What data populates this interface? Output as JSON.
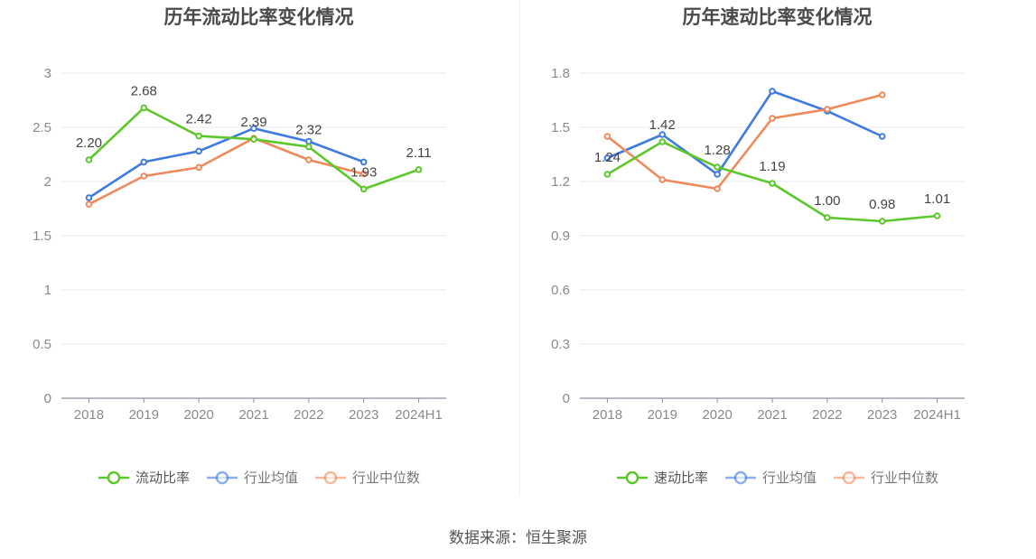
{
  "source_text": "数据来源：恒生聚源",
  "chart_data": [
    {
      "type": "line",
      "title": "历年流动比率变化情况",
      "categories": [
        "2018",
        "2019",
        "2020",
        "2021",
        "2022",
        "2023",
        "2024H1"
      ],
      "ylim": [
        0,
        3
      ],
      "yticks": [
        "0",
        "0.5",
        "1",
        "1.5",
        "2",
        "2.5",
        "3"
      ],
      "ytick_values": [
        0,
        0.5,
        1,
        1.5,
        2,
        2.5,
        3
      ],
      "grid": true,
      "legend_position": "bottom",
      "labeled_series": 0,
      "series": [
        {
          "name": "流动比率",
          "color": "#5cc72a",
          "values": [
            2.2,
            2.68,
            2.42,
            2.39,
            2.32,
            1.93,
            2.11
          ],
          "labels": [
            "2.20",
            "2.68",
            "2.42",
            "2.39",
            "2.32",
            "1.93",
            "2.11"
          ]
        },
        {
          "name": "行业均值",
          "color": "#3f7ae0",
          "values": [
            1.85,
            2.18,
            2.28,
            2.49,
            2.37,
            2.18,
            null
          ]
        },
        {
          "name": "行业中位数",
          "color": "#f0895a",
          "values": [
            1.79,
            2.05,
            2.13,
            2.4,
            2.2,
            2.07,
            null
          ]
        }
      ]
    },
    {
      "type": "line",
      "title": "历年速动比率变化情况",
      "categories": [
        "2018",
        "2019",
        "2020",
        "2021",
        "2022",
        "2023",
        "2024H1"
      ],
      "ylim": [
        0,
        1.8
      ],
      "yticks": [
        "0",
        "0.3",
        "0.6",
        "0.9",
        "1.2",
        "1.5",
        "1.8"
      ],
      "ytick_values": [
        0,
        0.3,
        0.6,
        0.9,
        1.2,
        1.5,
        1.8
      ],
      "grid": true,
      "legend_position": "bottom",
      "labeled_series": 0,
      "series": [
        {
          "name": "速动比率",
          "color": "#5cc72a",
          "values": [
            1.24,
            1.42,
            1.28,
            1.19,
            1.0,
            0.98,
            1.01
          ],
          "labels": [
            "1.24",
            "1.42",
            "1.28",
            "1.19",
            "1.00",
            "0.98",
            "1.01"
          ]
        },
        {
          "name": "行业均值",
          "color": "#3f7ae0",
          "values": [
            1.33,
            1.46,
            1.24,
            1.7,
            1.59,
            1.45,
            null
          ]
        },
        {
          "name": "行业中位数",
          "color": "#f0895a",
          "values": [
            1.45,
            1.21,
            1.16,
            1.55,
            1.6,
            1.68,
            null
          ]
        }
      ]
    }
  ]
}
